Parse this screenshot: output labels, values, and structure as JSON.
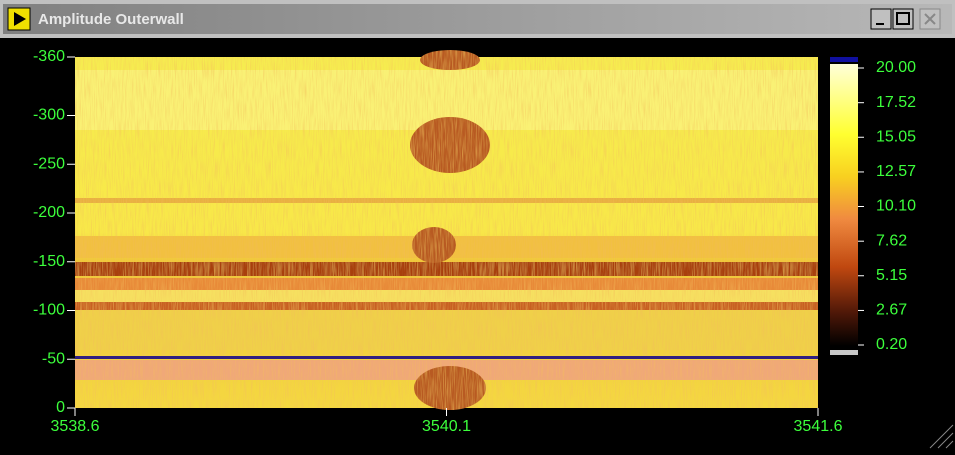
{
  "window": {
    "title": "Amplitude Outerwall"
  },
  "plot": {
    "xlim": [
      3538.6,
      3541.6
    ],
    "xticks": [
      3538.6,
      3540.1,
      3541.6
    ],
    "ylim": [
      0,
      -360
    ],
    "yticks": [
      -360,
      -300,
      -250,
      -200,
      -150,
      -100,
      -50,
      0
    ]
  },
  "colorbar": {
    "lim": [
      0.2,
      20
    ],
    "ticks": [
      {
        "value": 20,
        "label": "20.00"
      },
      17.52,
      15.05,
      12.57,
      {
        "value": 10.1,
        "label": "10.10"
      },
      7.62,
      5.15,
      2.67,
      {
        "value": 0.2,
        "label": "0.20"
      }
    ]
  }
}
